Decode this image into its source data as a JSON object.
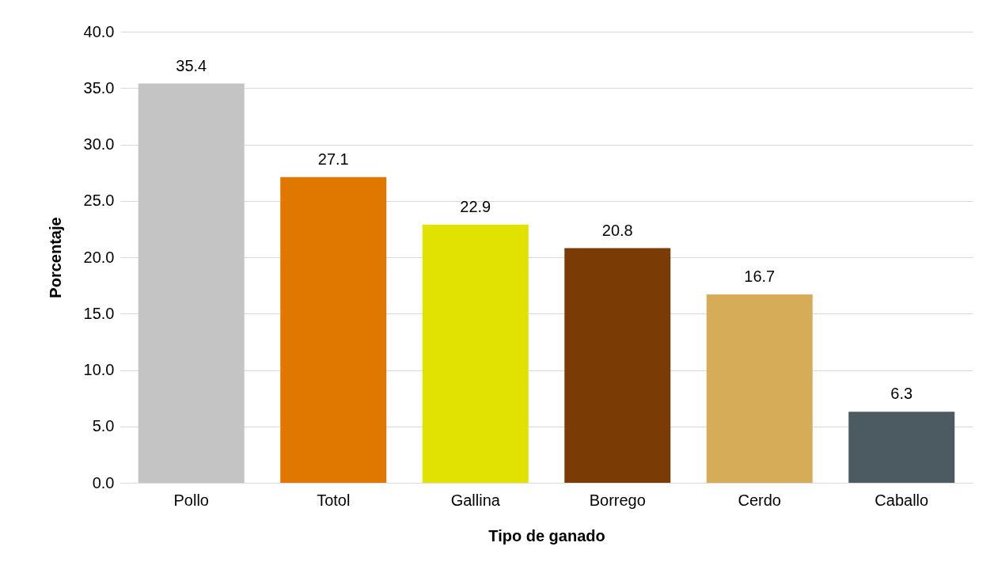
{
  "chart_data": {
    "type": "bar",
    "xlabel": "Tipo de ganado",
    "ylabel": "Porcentaje",
    "categories": [
      "Pollo",
      "Totol",
      "Gallina",
      "Borrego",
      "Cerdo",
      "Caballo"
    ],
    "values": [
      35.4,
      27.1,
      22.9,
      20.8,
      16.7,
      6.3
    ],
    "colors": [
      "#c4c4c4",
      "#e07800",
      "#e2e200",
      "#7a3c04",
      "#d6ac58",
      "#4c5b62"
    ],
    "ylim": [
      0,
      40
    ],
    "yticks": [
      {
        "value": 0,
        "label": "0.0"
      },
      {
        "value": 5,
        "label": "5.0"
      },
      {
        "value": 10,
        "label": "10.0"
      },
      {
        "value": 15,
        "label": "15.0"
      },
      {
        "value": 20,
        "label": "20.0"
      },
      {
        "value": 25,
        "label": "25.0"
      },
      {
        "value": 30,
        "label": "30.0"
      },
      {
        "value": 35,
        "label": "35.0"
      },
      {
        "value": 40,
        "label": "40.0"
      }
    ],
    "grid": "y",
    "data_labels": true
  }
}
